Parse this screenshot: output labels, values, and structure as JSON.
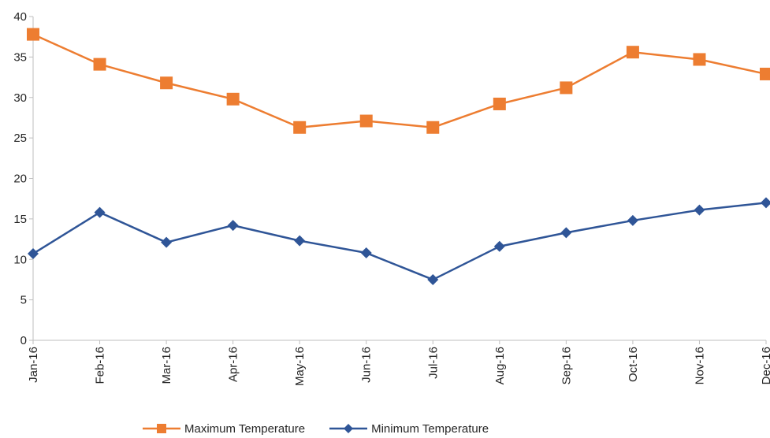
{
  "chart_data": {
    "type": "line",
    "categories": [
      "Jan-16",
      "Feb-16",
      "Mar-16",
      "Apr-16",
      "May-16",
      "Jun-16",
      "Jul-16",
      "Aug-16",
      "Sep-16",
      "Oct-16",
      "Nov-16",
      "Dec-16"
    ],
    "series": [
      {
        "name": "Maximum Temperature",
        "color": "#ED7D31",
        "marker": "square",
        "values": [
          37.8,
          34.1,
          31.8,
          29.8,
          26.3,
          27.1,
          26.3,
          29.2,
          31.2,
          35.6,
          34.7,
          32.9
        ]
      },
      {
        "name": "Minimum Temperature",
        "color": "#2F5597",
        "marker": "diamond",
        "values": [
          10.7,
          15.8,
          12.1,
          14.2,
          12.3,
          10.8,
          7.5,
          11.6,
          13.3,
          14.8,
          16.1,
          17.0
        ]
      }
    ],
    "ylim": [
      0,
      40
    ],
    "yticks": [
      0,
      5,
      10,
      15,
      20,
      25,
      30,
      35,
      40
    ],
    "grid": false,
    "legend": "bottom",
    "title": "",
    "xlabel": "",
    "ylabel": ""
  }
}
